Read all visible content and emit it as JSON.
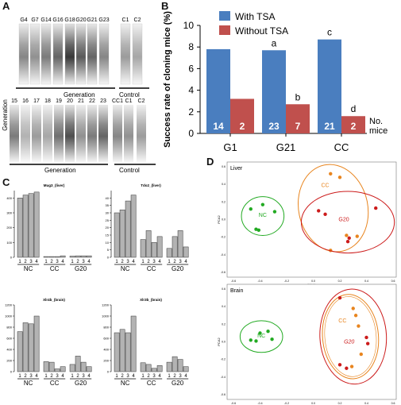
{
  "panelA": {
    "letter": "A",
    "row1_labels": [
      "G4",
      "G7",
      "G14",
      "G16",
      "G18",
      "G20",
      "G21",
      "G23",
      "C1",
      "C2"
    ],
    "row1_lane_intensity": [
      0.55,
      0.5,
      0.6,
      0.7,
      0.9,
      0.75,
      0.7,
      0.55,
      0.45,
      0.4
    ],
    "row1_group_labels": {
      "generation": "Generation",
      "control": "Control"
    },
    "side_label": "Generation",
    "row2_labels": [
      "15",
      "16",
      "17",
      "18",
      "19",
      "20",
      "21",
      "22",
      "23",
      "CC1",
      "C1",
      "C2"
    ],
    "row2_lane_intensity": [
      0.6,
      0.35,
      0.45,
      0.4,
      0.65,
      0.8,
      0.5,
      0.6,
      0.7,
      0.55,
      0.5,
      0.45
    ],
    "row2_group_labels": {
      "generation": "Generation",
      "control": "Control"
    }
  },
  "panelB": {
    "letter": "B",
    "chart_data": {
      "type": "bar",
      "categories": [
        "G1",
        "G21",
        "CC"
      ],
      "series": [
        {
          "name": "With TSA",
          "color": "#4a7ebf",
          "values": [
            7.8,
            7.7,
            8.7
          ],
          "counts": [
            "14",
            "23",
            "21"
          ],
          "letters": [
            "",
            "a",
            "c"
          ]
        },
        {
          "name": "Without TSA",
          "color": "#c0504d",
          "values": [
            3.2,
            2.7,
            1.6
          ],
          "counts": [
            "2",
            "7",
            "2"
          ],
          "letters": [
            "",
            "b",
            "d"
          ]
        }
      ],
      "ylabel": "Success rate of cloning mice (%)",
      "ylim": [
        0,
        10
      ],
      "yticks": [
        "0",
        "2",
        "4",
        "6",
        "8",
        "10"
      ],
      "counts_label": [
        "No.",
        "mice"
      ],
      "legend": "top"
    }
  },
  "panelC": {
    "letter": "C",
    "chart_data": [
      {
        "type": "bar",
        "title": "Mug3_(liver)",
        "values": [
          400,
          420,
          430,
          440,
          5,
          5,
          5,
          10,
          8,
          10,
          10,
          10
        ],
        "ylim": [
          0,
          450
        ],
        "yticks": [
          "0",
          "100",
          "200",
          "300",
          "400"
        ],
        "groups": [
          "NC",
          "CC",
          "G20"
        ],
        "xticks": [
          "1",
          "2",
          "3",
          "4"
        ]
      },
      {
        "type": "bar",
        "title": "Tdo2_(liver)",
        "values": [
          30,
          32,
          38,
          42,
          12,
          18,
          10,
          14,
          6,
          14,
          18,
          7
        ],
        "ylim": [
          0,
          45
        ],
        "yticks": [
          "0",
          "5",
          "10",
          "15",
          "20",
          "25",
          "30",
          "35",
          "40"
        ],
        "groups": [
          "NC",
          "CC",
          "G20"
        ],
        "xticks": [
          "1",
          "2",
          "3",
          "4"
        ]
      },
      {
        "type": "bar",
        "title": "Xlr4b_(brain)",
        "values": [
          720,
          880,
          860,
          1000,
          180,
          170,
          50,
          90,
          130,
          280,
          170,
          90
        ],
        "ylim": [
          0,
          1200
        ],
        "yticks": [
          "0",
          "200",
          "400",
          "600",
          "800",
          "1000",
          "1200"
        ],
        "groups": [
          "NC",
          "CC",
          "G20"
        ],
        "xticks": [
          "1",
          "2",
          "3",
          "4"
        ]
      },
      {
        "type": "bar",
        "title": "Xlr3b_(brain)",
        "values": [
          700,
          760,
          700,
          1000,
          160,
          130,
          60,
          110,
          170,
          270,
          220,
          90
        ],
        "ylim": [
          0,
          1200
        ],
        "yticks": [
          "0",
          "200",
          "400",
          "600",
          "800",
          "1000",
          "1200"
        ],
        "groups": [
          "NC",
          "CC",
          "G20"
        ],
        "xticks": [
          "1",
          "2",
          "3",
          "4"
        ]
      }
    ]
  },
  "panelD": {
    "letter": "D",
    "chart_data": [
      {
        "type": "scatter",
        "title": "Liver",
        "xlabel": "PCA1",
        "ylabel": "PCA2",
        "xlim": [
          -0.6,
          0.6
        ],
        "ylim": [
          -0.6,
          0.6
        ],
        "xticks": [
          "-0.6",
          "-0.4",
          "-0.2",
          "0.0",
          "0.2",
          "0.4",
          "0.6"
        ],
        "yticks": [
          "-0.6",
          "-0.4",
          "-0.2",
          "0.0",
          "0.2",
          "0.4",
          "0.6"
        ],
        "groups": [
          {
            "name": "NC",
            "color": "#22aa22",
            "points": [
              [
                -0.47,
                0.12
              ],
              [
                -0.38,
                0.17
              ],
              [
                -0.29,
                0.09
              ],
              [
                -0.43,
                -0.11
              ],
              [
                -0.41,
                -0.12
              ]
            ]
          },
          {
            "name": "CC",
            "color": "#e8851f",
            "points": [
              [
                0.13,
                0.52
              ],
              [
                0.2,
                0.48
              ],
              [
                0.25,
                -0.18
              ],
              [
                0.33,
                -0.19
              ],
              [
                0.13,
                -0.35
              ]
            ]
          },
          {
            "name": "G20",
            "color": "#cc1b1b",
            "points": [
              [
                0.04,
                0.1
              ],
              [
                0.09,
                0.06
              ],
              [
                0.47,
                0.13
              ],
              [
                0.27,
                -0.21
              ],
              [
                0.26,
                -0.25
              ]
            ]
          }
        ]
      },
      {
        "type": "scatter",
        "title": "Brain",
        "xlabel": "PCA1",
        "ylabel": "PCA2",
        "xlim": [
          -0.6,
          0.6
        ],
        "ylim": [
          -0.6,
          0.6
        ],
        "xticks": [
          "-0.6",
          "-0.4",
          "-0.2",
          "0.0",
          "0.2",
          "0.4",
          "0.6"
        ],
        "yticks": [
          "-0.6",
          "-0.4",
          "-0.2",
          "0.0",
          "0.2",
          "0.4",
          "0.6"
        ],
        "groups": [
          {
            "name": "NC",
            "color": "#22aa22",
            "points": [
              [
                -0.4,
                0.1
              ],
              [
                -0.34,
                0.12
              ],
              [
                -0.47,
                0.02
              ],
              [
                -0.31,
                0.03
              ],
              [
                -0.43,
                0.01
              ]
            ]
          },
          {
            "name": "CC",
            "color": "#e8851f",
            "points": [
              [
                0.3,
                0.38
              ],
              [
                0.32,
                0.3
              ],
              [
                0.34,
                0.18
              ],
              [
                0.36,
                -0.14
              ],
              [
                0.29,
                -0.28
              ]
            ]
          },
          {
            "name": "G20",
            "color": "#cc1b1b",
            "points": [
              [
                0.2,
                0.5
              ],
              [
                0.4,
                0.05
              ],
              [
                0.41,
                -0.02
              ],
              [
                0.2,
                -0.26
              ],
              [
                0.25,
                -0.3
              ]
            ]
          }
        ]
      }
    ]
  }
}
